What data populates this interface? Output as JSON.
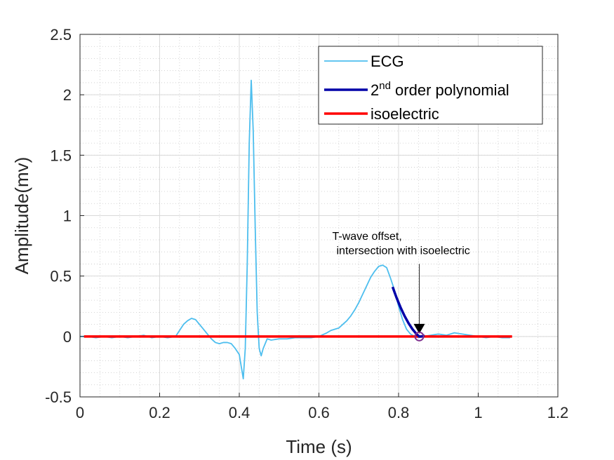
{
  "chart_data": {
    "type": "line",
    "title": "",
    "xlabel": "Time (s)",
    "ylabel": "Amplitude(mv)",
    "xlim": [
      0,
      1.2
    ],
    "ylim": [
      -0.5,
      2.5
    ],
    "xticks": [
      0,
      0.2,
      0.4,
      0.6,
      0.8,
      1,
      1.2
    ],
    "yticks": [
      -0.5,
      0,
      0.5,
      1,
      1.5,
      2,
      2.5
    ],
    "xtick_labels": [
      "0",
      "0.2",
      "0.4",
      "0.6",
      "0.8",
      "1",
      "1.2"
    ],
    "ytick_labels": [
      "-0.5",
      "0",
      "0.5",
      "1",
      "1.5",
      "2",
      "2.5"
    ],
    "grid": true,
    "minor_grid": true,
    "legend_position": "top-right",
    "series": [
      {
        "name": "ECG",
        "color": "#4dbeee",
        "x": [
          0.0,
          0.02,
          0.04,
          0.06,
          0.08,
          0.1,
          0.12,
          0.14,
          0.16,
          0.18,
          0.2,
          0.22,
          0.24,
          0.25,
          0.26,
          0.27,
          0.28,
          0.29,
          0.3,
          0.31,
          0.32,
          0.33,
          0.34,
          0.35,
          0.36,
          0.37,
          0.38,
          0.39,
          0.4,
          0.405,
          0.41,
          0.415,
          0.42,
          0.425,
          0.43,
          0.435,
          0.44,
          0.445,
          0.45,
          0.455,
          0.46,
          0.47,
          0.48,
          0.5,
          0.52,
          0.54,
          0.56,
          0.58,
          0.6,
          0.62,
          0.63,
          0.64,
          0.65,
          0.66,
          0.67,
          0.68,
          0.69,
          0.7,
          0.71,
          0.72,
          0.73,
          0.74,
          0.75,
          0.76,
          0.77,
          0.78,
          0.79,
          0.8,
          0.81,
          0.82,
          0.83,
          0.84,
          0.85,
          0.86,
          0.88,
          0.9,
          0.92,
          0.94,
          0.96,
          0.98,
          1.0,
          1.02,
          1.04,
          1.06,
          1.08
        ],
        "y": [
          0.0,
          0.0,
          -0.01,
          0.0,
          -0.01,
          0.0,
          -0.01,
          0.0,
          0.01,
          -0.01,
          0.0,
          -0.01,
          0.0,
          0.05,
          0.1,
          0.13,
          0.15,
          0.14,
          0.1,
          0.06,
          0.02,
          -0.02,
          -0.05,
          -0.06,
          -0.05,
          -0.05,
          -0.06,
          -0.1,
          -0.15,
          -0.25,
          -0.35,
          -0.1,
          0.6,
          1.6,
          2.12,
          1.7,
          0.9,
          0.2,
          -0.1,
          -0.16,
          -0.1,
          -0.02,
          -0.03,
          -0.02,
          -0.02,
          -0.01,
          -0.01,
          -0.01,
          0.0,
          0.03,
          0.05,
          0.06,
          0.07,
          0.1,
          0.13,
          0.17,
          0.22,
          0.28,
          0.35,
          0.42,
          0.49,
          0.54,
          0.58,
          0.59,
          0.57,
          0.48,
          0.38,
          0.25,
          0.14,
          0.06,
          0.02,
          0.0,
          -0.01,
          0.0,
          0.01,
          0.02,
          0.01,
          0.03,
          0.02,
          0.01,
          0.0,
          -0.01,
          0.0,
          -0.01,
          -0.01
        ]
      },
      {
        "name": "2nd order polynomial",
        "color": "#0000a8",
        "x": [
          0.785,
          0.795,
          0.805,
          0.815,
          0.825,
          0.835,
          0.845,
          0.852,
          0.858,
          0.865
        ],
        "y": [
          0.41,
          0.32,
          0.24,
          0.17,
          0.11,
          0.06,
          0.02,
          0.0,
          0.0,
          0.01
        ]
      },
      {
        "name": "isoelectric",
        "color": "#ff0000",
        "x": [
          0.01,
          1.085
        ],
        "y": [
          0.0,
          0.0
        ]
      }
    ],
    "legend": {
      "ecg_label": "ECG",
      "poly_label_base": "2",
      "poly_label_sup": "nd",
      "poly_label_rest": " order polynomial",
      "iso_label": "isoelectric"
    },
    "annotation": {
      "line1": "T-wave offset,",
      "line2": "intersection with isoelectric",
      "point": {
        "x": 0.852,
        "y": 0.0
      },
      "arrow_from_y": 0.6,
      "marker_color": "#7e2f8e"
    }
  }
}
